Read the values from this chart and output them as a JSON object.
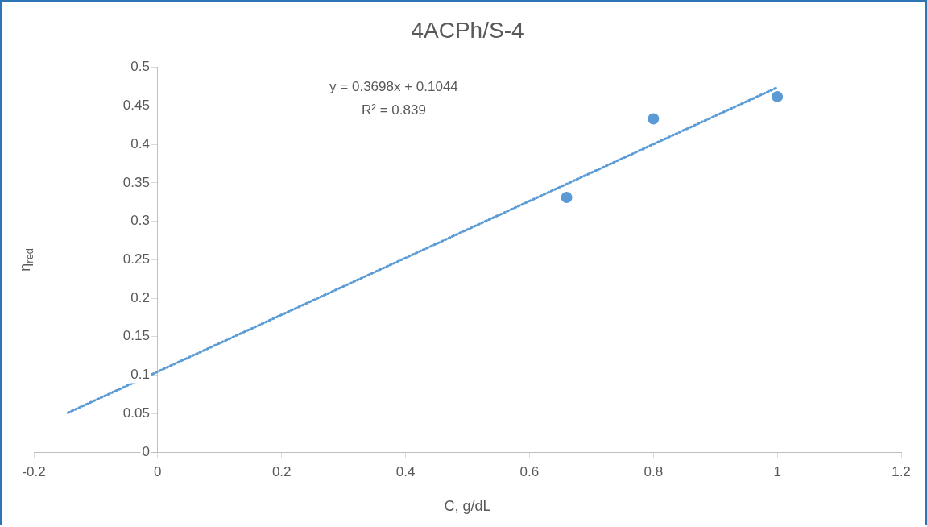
{
  "chart_data": {
    "type": "scatter",
    "title": "4ACPh/S-4",
    "xlabel": "C, g/dL",
    "ylabel": "η$_{red}$",
    "xlim": [
      -0.2,
      1.2
    ],
    "xticks": [
      -0.2,
      0,
      0.2,
      0.4,
      0.6,
      0.8,
      1,
      1.2
    ],
    "ylim": [
      0,
      0.5
    ],
    "yticks": [
      0,
      0.05,
      0.1,
      0.15,
      0.2,
      0.25,
      0.3,
      0.35,
      0.4,
      0.45,
      0.5
    ],
    "series": [
      {
        "type": "scatter",
        "color": "#5b9bd5",
        "x": [
          0.66,
          0.8,
          1
        ],
        "values": [
          0.331,
          0.433,
          0.462
        ],
        "marker": "circle"
      },
      {
        "type": "line",
        "color": "#5b9bd5",
        "x": [
          -0.145,
          1
        ],
        "values": [
          0.051,
          0.474
        ],
        "marker": "none",
        "line_style": "dotted"
      }
    ],
    "annotations": [
      "y = 0.3698x + 0.1044",
      "R² = 0.839"
    ]
  }
}
